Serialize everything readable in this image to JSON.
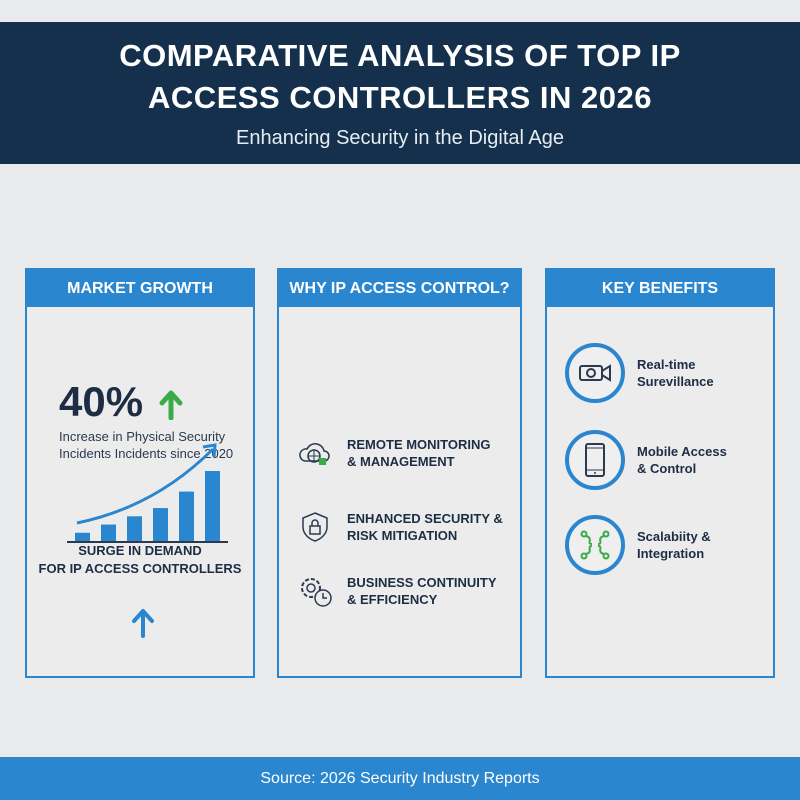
{
  "header": {
    "title_line1": "COMPARATIVE ANALYSIS OF TOP IP",
    "title_line2": "ACCESS CONTROLLERS IN 2026",
    "subtitle": "Enhancing Security in the Digital Age"
  },
  "market": {
    "title": "MARKET GROWTH",
    "stat": "40%",
    "desc": "Increase in Physical Security Incidents Incidents since 2020",
    "surge_line1": "SURGE IN DEMAND",
    "surge_line2": "FOR IP ACCESS CONTROLLERS",
    "bars": [
      1,
      2,
      3,
      4,
      6,
      8.5
    ]
  },
  "why": {
    "title": "WHY IP ACCESS CONTROL?",
    "items": [
      {
        "label": "REMOTE MONITORING\n& MANAGEMENT",
        "icon": "cloud-globe-lock-icon"
      },
      {
        "label": "ENHANCED SECURITY &\nRISK MITIGATION",
        "icon": "shield-lock-icon"
      },
      {
        "label": "BUSINESS CONTINUITY\n& EFFICIENCY",
        "icon": "gear-clock-icon"
      }
    ]
  },
  "benefits": {
    "title": "KEY BENEFITS",
    "items": [
      {
        "label": "Real-time\nSurevillance",
        "icon": "video-camera-icon"
      },
      {
        "label": "Mobile Access\n& Control",
        "icon": "smartphone-icon"
      },
      {
        "label": "Scalabiity &\nIntegration",
        "icon": "network-nodes-icon"
      }
    ]
  },
  "footer": {
    "source": "Source: 2026 Security Industry Reports"
  },
  "colors": {
    "navy": "#15304d",
    "blue": "#2a86cf",
    "green": "#3aab48"
  }
}
